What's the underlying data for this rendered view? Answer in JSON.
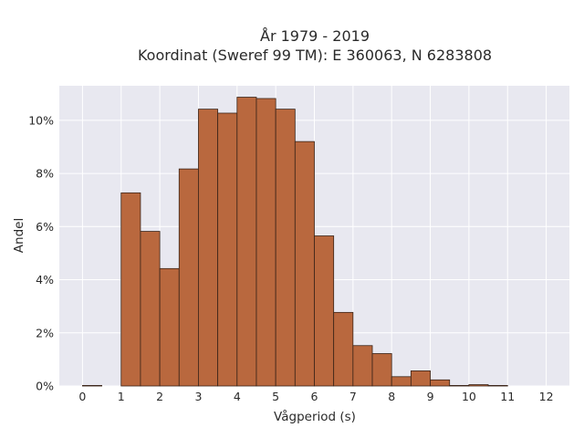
{
  "chart_data": {
    "type": "bar",
    "title": "År 1979 - 2019",
    "subtitle": "Koordinat (Sweref 99 TM): E 360063, N 6283808",
    "xlabel": "Vågperiod (s)",
    "ylabel": "Andel",
    "x_ticks": [
      "0",
      "1",
      "2",
      "3",
      "4",
      "5",
      "6",
      "7",
      "8",
      "9",
      "10",
      "11",
      "12"
    ],
    "y_ticks": [
      "0%",
      "2%",
      "4%",
      "6%",
      "8%",
      "10%"
    ],
    "xlim": [
      -0.6,
      12.6
    ],
    "ylim": [
      0,
      11.3
    ],
    "bin_width": 0.5,
    "bins": [
      {
        "x0": 0.0,
        "value": 0.02
      },
      {
        "x0": 1.0,
        "value": 7.27
      },
      {
        "x0": 1.5,
        "value": 5.82
      },
      {
        "x0": 2.0,
        "value": 4.42
      },
      {
        "x0": 2.5,
        "value": 8.17
      },
      {
        "x0": 3.0,
        "value": 10.42
      },
      {
        "x0": 3.5,
        "value": 10.27
      },
      {
        "x0": 4.0,
        "value": 10.87
      },
      {
        "x0": 4.5,
        "value": 10.82
      },
      {
        "x0": 5.0,
        "value": 10.42
      },
      {
        "x0": 5.5,
        "value": 9.2
      },
      {
        "x0": 6.0,
        "value": 5.65
      },
      {
        "x0": 6.5,
        "value": 2.77
      },
      {
        "x0": 7.0,
        "value": 1.52
      },
      {
        "x0": 7.5,
        "value": 1.22
      },
      {
        "x0": 8.0,
        "value": 0.35
      },
      {
        "x0": 8.5,
        "value": 0.57
      },
      {
        "x0": 9.0,
        "value": 0.23
      },
      {
        "x0": 9.5,
        "value": 0.02
      },
      {
        "x0": 10.0,
        "value": 0.05
      },
      {
        "x0": 10.5,
        "value": 0.02
      }
    ],
    "grid": true,
    "colors": {
      "bar_fill": "#b9683e",
      "bar_edge": "#3a2418",
      "plot_background": "#e8e8f0",
      "grid": "#ffffff"
    }
  }
}
